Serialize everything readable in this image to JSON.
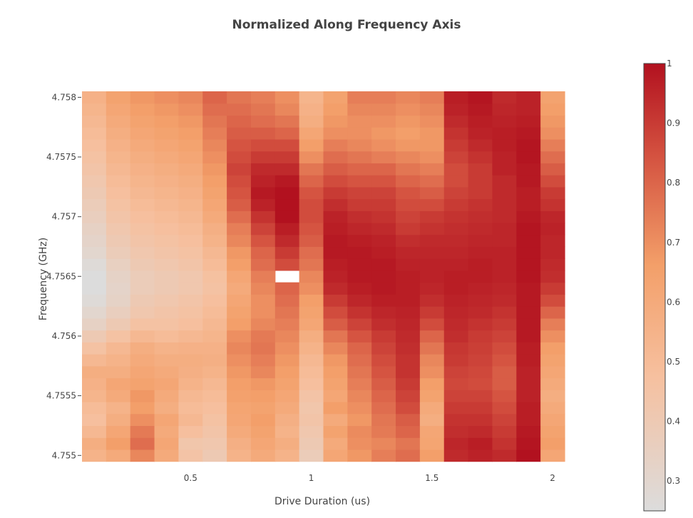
{
  "chart_data": {
    "type": "heatmap",
    "title": "Normalized Along Frequency Axis",
    "xlabel": "Drive Duration (us)",
    "ylabel": "Frequency (GHz)",
    "x_range": [
      0.05,
      2.05
    ],
    "y_range": [
      4.7549,
      4.75805
    ],
    "x_ticks": [
      0.5,
      1,
      1.5,
      2
    ],
    "x_tick_labels": [
      "0.5",
      "1",
      "1.5",
      "2"
    ],
    "y_ticks": [
      4.755,
      4.7555,
      4.756,
      4.7565,
      4.757,
      4.7575,
      4.758
    ],
    "y_tick_labels": [
      "4.755",
      "4.7555",
      "4.756",
      "4.7565",
      "4.757",
      "4.7575",
      "4.758"
    ],
    "x": [
      0.1,
      0.2,
      0.3,
      0.4,
      0.5,
      0.6,
      0.7,
      0.8,
      0.9,
      1.0,
      1.1,
      1.2,
      1.3,
      1.4,
      1.5,
      1.6,
      1.7,
      1.8,
      1.9,
      2.0
    ],
    "y_start": 4.755,
    "y_step": 0.0001,
    "y_count": 31,
    "colorscale": {
      "name": "RdBu reversed (upper half)",
      "zmin": 0.25,
      "zmax": 1.0,
      "ticks": [
        0.3,
        0.4,
        0.5,
        0.6,
        0.7,
        0.8,
        0.9,
        1
      ],
      "tick_labels": [
        "0.3",
        "0.4",
        "0.5",
        "0.6",
        "0.7",
        "0.8",
        "0.9",
        "1"
      ],
      "stops": [
        [
          0,
          "#dcdcdc"
        ],
        [
          0.3,
          "#f6c09f"
        ],
        [
          0.55,
          "#f39f69"
        ],
        [
          0.8,
          "#d3503f"
        ],
        [
          1,
          "#b2111f"
        ]
      ]
    },
    "missing_cells": [
      [
        8,
        15
      ]
    ],
    "z": [
      [
        0.55,
        0.6,
        0.72,
        0.6,
        0.45,
        0.4,
        0.55,
        0.6,
        0.55,
        0.38,
        0.62,
        0.68,
        0.74,
        0.78,
        0.66,
        0.94,
        0.96,
        0.94,
        1.0,
        0.62
      ],
      [
        0.58,
        0.66,
        0.78,
        0.62,
        0.43,
        0.42,
        0.57,
        0.62,
        0.58,
        0.4,
        0.6,
        0.7,
        0.72,
        0.76,
        0.63,
        0.95,
        0.97,
        0.92,
        0.99,
        0.66
      ],
      [
        0.52,
        0.62,
        0.75,
        0.6,
        0.48,
        0.44,
        0.6,
        0.64,
        0.55,
        0.42,
        0.64,
        0.71,
        0.75,
        0.8,
        0.62,
        0.93,
        0.94,
        0.9,
        0.98,
        0.64
      ],
      [
        0.48,
        0.58,
        0.7,
        0.62,
        0.52,
        0.46,
        0.62,
        0.66,
        0.57,
        0.44,
        0.6,
        0.68,
        0.76,
        0.82,
        0.58,
        0.92,
        0.92,
        0.88,
        0.97,
        0.62
      ],
      [
        0.5,
        0.55,
        0.66,
        0.58,
        0.5,
        0.48,
        0.63,
        0.64,
        0.6,
        0.43,
        0.66,
        0.7,
        0.78,
        0.86,
        0.6,
        0.9,
        0.9,
        0.86,
        0.97,
        0.6
      ],
      [
        0.54,
        0.6,
        0.68,
        0.6,
        0.52,
        0.5,
        0.65,
        0.66,
        0.62,
        0.45,
        0.62,
        0.72,
        0.8,
        0.88,
        0.64,
        0.88,
        0.88,
        0.84,
        0.96,
        0.58
      ],
      [
        0.56,
        0.62,
        0.64,
        0.62,
        0.55,
        0.52,
        0.66,
        0.68,
        0.64,
        0.48,
        0.64,
        0.74,
        0.82,
        0.9,
        0.66,
        0.87,
        0.86,
        0.82,
        0.96,
        0.6
      ],
      [
        0.58,
        0.58,
        0.62,
        0.6,
        0.57,
        0.55,
        0.68,
        0.72,
        0.66,
        0.5,
        0.66,
        0.76,
        0.84,
        0.92,
        0.7,
        0.88,
        0.87,
        0.82,
        0.96,
        0.62
      ],
      [
        0.52,
        0.55,
        0.6,
        0.58,
        0.58,
        0.57,
        0.7,
        0.74,
        0.68,
        0.52,
        0.68,
        0.78,
        0.86,
        0.92,
        0.72,
        0.9,
        0.88,
        0.84,
        0.97,
        0.64
      ],
      [
        0.46,
        0.52,
        0.58,
        0.55,
        0.56,
        0.56,
        0.72,
        0.76,
        0.7,
        0.55,
        0.72,
        0.8,
        0.88,
        0.93,
        0.76,
        0.91,
        0.89,
        0.86,
        0.97,
        0.66
      ],
      [
        0.4,
        0.46,
        0.52,
        0.5,
        0.52,
        0.54,
        0.7,
        0.75,
        0.72,
        0.58,
        0.76,
        0.84,
        0.9,
        0.94,
        0.8,
        0.93,
        0.9,
        0.88,
        0.98,
        0.7
      ],
      [
        0.34,
        0.4,
        0.46,
        0.46,
        0.48,
        0.52,
        0.66,
        0.72,
        0.74,
        0.62,
        0.82,
        0.88,
        0.93,
        0.95,
        0.86,
        0.94,
        0.92,
        0.9,
        0.98,
        0.74
      ],
      [
        0.3,
        0.36,
        0.42,
        0.44,
        0.46,
        0.5,
        0.64,
        0.7,
        0.76,
        0.64,
        0.86,
        0.92,
        0.95,
        0.96,
        0.9,
        0.95,
        0.94,
        0.92,
        0.98,
        0.8
      ],
      [
        0.27,
        0.33,
        0.4,
        0.42,
        0.44,
        0.48,
        0.62,
        0.7,
        0.78,
        0.66,
        0.9,
        0.95,
        0.97,
        0.97,
        0.93,
        0.96,
        0.95,
        0.94,
        0.98,
        0.86
      ],
      [
        0.25,
        0.32,
        0.38,
        0.4,
        0.42,
        0.46,
        0.6,
        0.72,
        0.8,
        0.7,
        0.94,
        0.97,
        0.98,
        0.97,
        0.95,
        0.97,
        0.96,
        0.95,
        0.98,
        0.9
      ],
      [
        0.25,
        0.33,
        0.38,
        0.4,
        0.42,
        0.47,
        0.62,
        0.74,
        0.82,
        0.72,
        0.96,
        0.98,
        0.98,
        0.97,
        0.96,
        0.97,
        0.97,
        0.96,
        0.99,
        0.93
      ],
      [
        0.27,
        0.35,
        0.4,
        0.42,
        0.44,
        0.5,
        0.66,
        0.78,
        0.86,
        0.76,
        0.97,
        0.98,
        0.98,
        0.96,
        0.96,
        0.96,
        0.97,
        0.96,
        0.99,
        0.94
      ],
      [
        0.3,
        0.38,
        0.42,
        0.44,
        0.46,
        0.52,
        0.68,
        0.8,
        0.9,
        0.78,
        0.98,
        0.98,
        0.97,
        0.95,
        0.95,
        0.95,
        0.96,
        0.96,
        0.99,
        0.95
      ],
      [
        0.32,
        0.4,
        0.44,
        0.46,
        0.48,
        0.55,
        0.72,
        0.84,
        0.94,
        0.82,
        0.98,
        0.97,
        0.96,
        0.93,
        0.94,
        0.94,
        0.95,
        0.95,
        0.99,
        0.95
      ],
      [
        0.34,
        0.42,
        0.46,
        0.48,
        0.5,
        0.57,
        0.74,
        0.88,
        0.97,
        0.84,
        0.97,
        0.95,
        0.94,
        0.9,
        0.92,
        0.93,
        0.94,
        0.95,
        0.99,
        0.96
      ],
      [
        0.36,
        0.44,
        0.48,
        0.5,
        0.52,
        0.6,
        0.78,
        0.92,
        1.0,
        0.86,
        0.96,
        0.93,
        0.92,
        0.88,
        0.9,
        0.92,
        0.93,
        0.94,
        0.98,
        0.95
      ],
      [
        0.38,
        0.46,
        0.5,
        0.52,
        0.54,
        0.62,
        0.82,
        0.96,
        1.0,
        0.86,
        0.93,
        0.9,
        0.9,
        0.86,
        0.86,
        0.9,
        0.92,
        0.94,
        0.97,
        0.92
      ],
      [
        0.4,
        0.48,
        0.52,
        0.54,
        0.56,
        0.64,
        0.84,
        0.98,
        1.0,
        0.84,
        0.9,
        0.88,
        0.88,
        0.84,
        0.82,
        0.88,
        0.9,
        0.94,
        0.97,
        0.9
      ],
      [
        0.42,
        0.5,
        0.54,
        0.56,
        0.58,
        0.66,
        0.86,
        0.96,
        0.98,
        0.8,
        0.86,
        0.84,
        0.84,
        0.8,
        0.78,
        0.86,
        0.9,
        0.94,
        0.98,
        0.86
      ],
      [
        0.44,
        0.52,
        0.56,
        0.58,
        0.6,
        0.68,
        0.88,
        0.94,
        0.94,
        0.76,
        0.82,
        0.8,
        0.8,
        0.76,
        0.74,
        0.86,
        0.9,
        0.96,
        0.98,
        0.82
      ],
      [
        0.46,
        0.54,
        0.58,
        0.6,
        0.62,
        0.7,
        0.86,
        0.9,
        0.9,
        0.7,
        0.78,
        0.76,
        0.74,
        0.72,
        0.7,
        0.88,
        0.92,
        0.96,
        0.99,
        0.78
      ],
      [
        0.48,
        0.56,
        0.6,
        0.62,
        0.64,
        0.72,
        0.84,
        0.86,
        0.86,
        0.66,
        0.74,
        0.72,
        0.7,
        0.68,
        0.68,
        0.9,
        0.94,
        0.97,
        0.99,
        0.74
      ],
      [
        0.5,
        0.58,
        0.62,
        0.64,
        0.66,
        0.74,
        0.82,
        0.82,
        0.8,
        0.62,
        0.7,
        0.7,
        0.68,
        0.66,
        0.68,
        0.92,
        0.96,
        0.97,
        0.98,
        0.7
      ],
      [
        0.52,
        0.6,
        0.64,
        0.66,
        0.68,
        0.76,
        0.8,
        0.78,
        0.76,
        0.58,
        0.68,
        0.7,
        0.7,
        0.68,
        0.7,
        0.94,
        0.97,
        0.96,
        0.97,
        0.68
      ],
      [
        0.54,
        0.62,
        0.66,
        0.68,
        0.7,
        0.78,
        0.78,
        0.76,
        0.72,
        0.56,
        0.66,
        0.72,
        0.72,
        0.7,
        0.72,
        0.96,
        0.98,
        0.95,
        0.96,
        0.66
      ],
      [
        0.56,
        0.64,
        0.68,
        0.7,
        0.72,
        0.8,
        0.76,
        0.74,
        0.7,
        0.54,
        0.64,
        0.74,
        0.74,
        0.72,
        0.74,
        0.97,
        0.99,
        0.94,
        0.96,
        0.64
      ]
    ]
  }
}
